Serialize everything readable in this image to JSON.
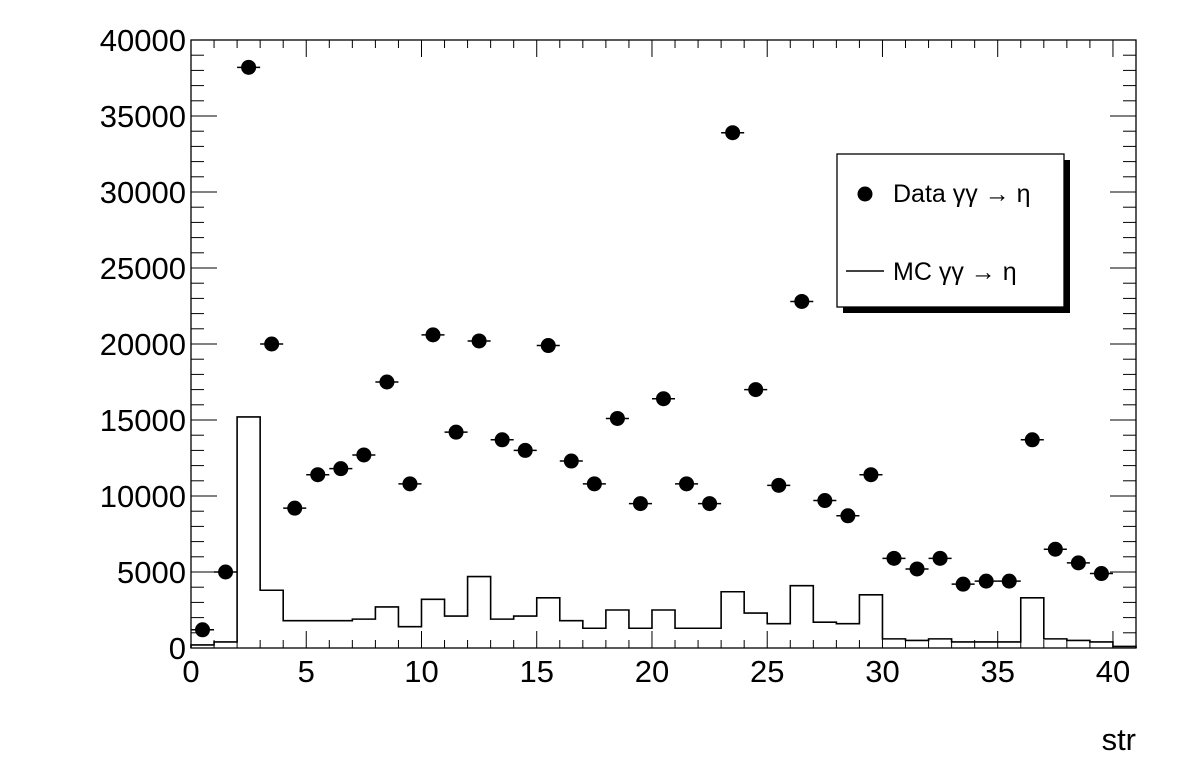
{
  "chart_data": {
    "type": "scatter",
    "xlabel": "str",
    "ylabel": "",
    "xlim": [
      0,
      41
    ],
    "ylim": [
      0,
      40000
    ],
    "x_ticks": [
      0,
      5,
      10,
      15,
      20,
      25,
      30,
      35,
      40
    ],
    "y_ticks": [
      0,
      5000,
      10000,
      15000,
      20000,
      25000,
      30000,
      35000,
      40000
    ],
    "grid": false,
    "legend_position": "top-right",
    "bin_edges": [
      0,
      1,
      2,
      3,
      4,
      5,
      6,
      7,
      8,
      9,
      10,
      11,
      12,
      13,
      14,
      15,
      16,
      17,
      18,
      19,
      20,
      21,
      22,
      23,
      24,
      25,
      26,
      27,
      28,
      29,
      30,
      31,
      32,
      33,
      34,
      35,
      36,
      37,
      38,
      39,
      40,
      41
    ],
    "series": [
      {
        "name": "Data γγ → η",
        "style": "markers",
        "x": [
          0.5,
          1.5,
          2.5,
          3.5,
          4.5,
          5.5,
          6.5,
          7.5,
          8.5,
          9.5,
          10.5,
          11.5,
          12.5,
          13.5,
          14.5,
          15.5,
          16.5,
          17.5,
          18.5,
          19.5,
          20.5,
          21.5,
          22.5,
          23.5,
          24.5,
          25.5,
          26.5,
          27.5,
          28.5,
          29.5,
          30.5,
          31.5,
          32.5,
          33.5,
          34.5,
          35.5,
          36.5,
          37.5,
          38.5,
          39.5
        ],
        "values": [
          1200,
          5000,
          38200,
          20000,
          9200,
          11400,
          11800,
          12700,
          17500,
          10800,
          20600,
          14200,
          20200,
          13700,
          13000,
          19900,
          12300,
          10800,
          15100,
          9500,
          16400,
          10800,
          9500,
          33900,
          17000,
          10700,
          22800,
          9700,
          8700,
          11400,
          5900,
          5200,
          5900,
          4200,
          4400,
          4400,
          13700,
          6500,
          5600,
          4900
        ]
      },
      {
        "name": "MC γγ → η",
        "style": "histogram",
        "values": [
          200,
          400,
          15200,
          3800,
          1800,
          1800,
          1800,
          1900,
          2700,
          1400,
          3200,
          2100,
          4700,
          1900,
          2100,
          3300,
          1800,
          1300,
          2500,
          1300,
          2500,
          1300,
          1300,
          3700,
          2300,
          1600,
          4100,
          1700,
          1600,
          3500,
          600,
          500,
          600,
          400,
          400,
          400,
          3300,
          600,
          500,
          400,
          100
        ]
      }
    ]
  }
}
